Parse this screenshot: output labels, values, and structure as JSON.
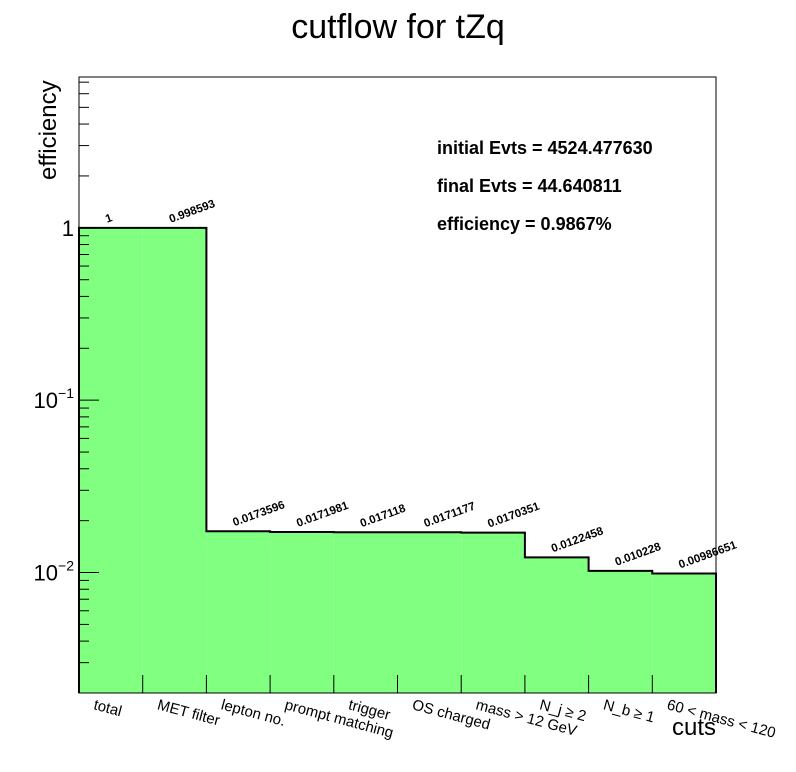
{
  "chart_data": {
    "type": "bar",
    "title": "cutflow for tZq",
    "xlabel": "cuts",
    "ylabel": "efficiency",
    "yscale": "log",
    "ylim": [
      0.002,
      7.5
    ],
    "yticks": [
      {
        "value": 0.01,
        "base": "10",
        "exp": "−2"
      },
      {
        "value": 0.1,
        "base": "10",
        "exp": "−1"
      },
      {
        "value": 1,
        "base": "1",
        "exp": ""
      }
    ],
    "categories": [
      "total",
      "MET filter",
      "lepton no.",
      "prompt matching",
      "trigger",
      "OS charged",
      "mass > 12 GeV",
      "N_j ≥ 2",
      "N_b ≥ 1",
      "60 < mass < 120"
    ],
    "values": [
      1,
      0.998593,
      0.0173596,
      0.0171981,
      0.017118,
      0.0171177,
      0.0170351,
      0.0122458,
      0.010228,
      0.00986651
    ],
    "value_labels": [
      "1",
      "0.998593",
      "0.0173596",
      "0.0171981",
      "0.017118",
      "0.0171177",
      "0.0170351",
      "0.0122458",
      "0.010228",
      "0.00986651"
    ],
    "fill_color": "#80ff80",
    "line_color": "#000000",
    "grid": false,
    "annotations": [
      "initial Evts = 4524.477630",
      "final Evts = 44.640811",
      "efficiency = 0.9867%"
    ]
  }
}
